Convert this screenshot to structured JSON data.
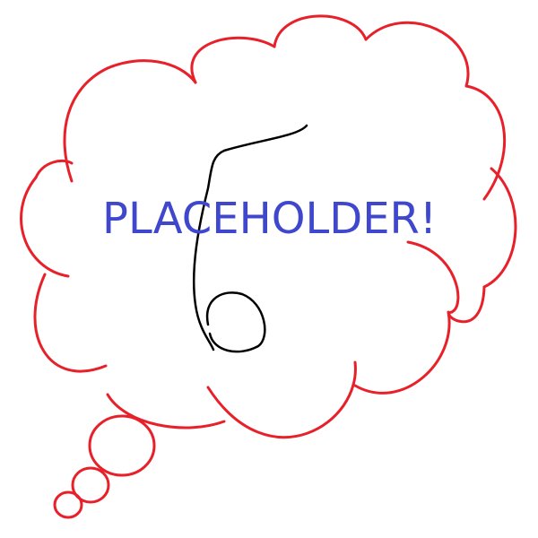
{
  "text": {
    "placeholder": "PLACEHOLDER!"
  },
  "colors": {
    "cloud_outline": "#e8202a",
    "text": "#3f48cc",
    "doodle": "#000000",
    "background": "#ffffff"
  },
  "icons": {
    "cloud": "thought-bubble-icon",
    "doodle": "number-six-scribble-icon"
  }
}
